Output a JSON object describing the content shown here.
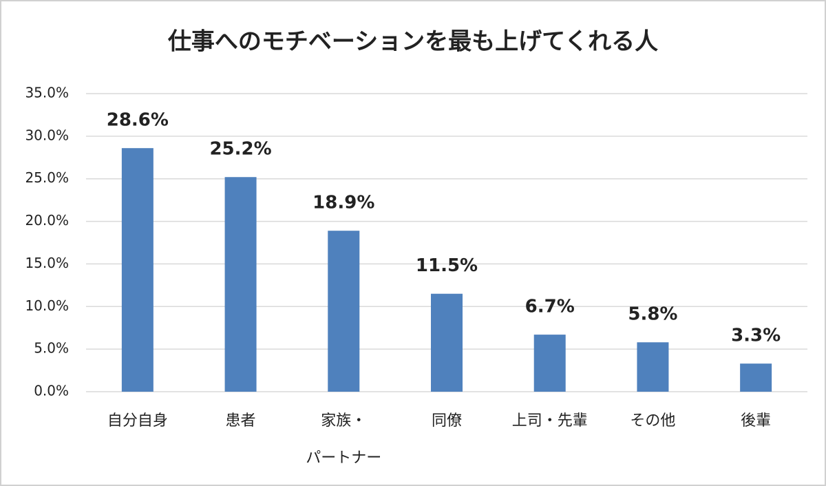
{
  "chart_data": {
    "type": "bar",
    "title": "仕事へのモチベーションを最も上げてくれる人",
    "categories": [
      "自分自身",
      "患者",
      "家族・\nパートナー",
      "同僚",
      "上司・先輩",
      "その他",
      "後輩"
    ],
    "values": [
      28.6,
      25.2,
      18.9,
      11.5,
      6.7,
      5.8,
      3.3
    ],
    "value_labels": [
      "28.6%",
      "25.2%",
      "18.9%",
      "11.5%",
      "6.7%",
      "5.8%",
      "3.3%"
    ],
    "color": "#4f81bd",
    "ylim": [
      0,
      35
    ],
    "yticks": [
      {
        "value": 0,
        "label": "0.0%"
      },
      {
        "value": 5,
        "label": "5.0%"
      },
      {
        "value": 10,
        "label": "10.0%"
      },
      {
        "value": 15,
        "label": "15.0%"
      },
      {
        "value": 20,
        "label": "20.0%"
      },
      {
        "value": 25,
        "label": "25.0%"
      },
      {
        "value": 30,
        "label": "30.0%"
      },
      {
        "value": 35,
        "label": "35.0%"
      }
    ],
    "grid": true
  }
}
